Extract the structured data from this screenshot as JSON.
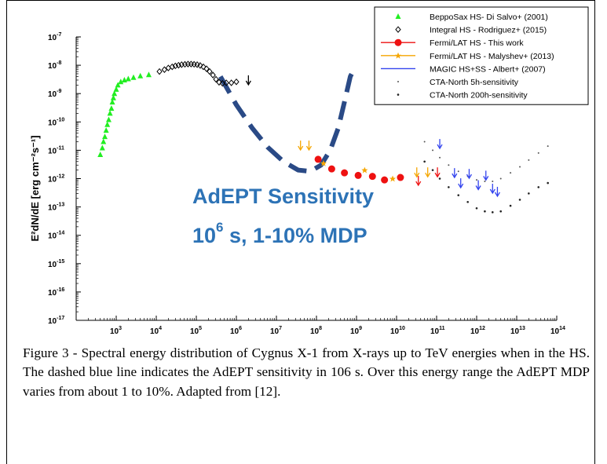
{
  "chart_data": {
    "type": "scatter",
    "xlabel": "Energy [eV]",
    "ylabel": "E²dN/dE [erg cm⁻²s⁻¹]",
    "x_scale": "log",
    "y_scale": "log",
    "xlim": [
      100,
      100000000000000.0
    ],
    "ylim": [
      1e-17,
      1e-07
    ],
    "x_tick_exponents": [
      3,
      4,
      5,
      6,
      7,
      8,
      9,
      10,
      11,
      12,
      13,
      14
    ],
    "y_tick_exponents": [
      -7,
      -8,
      -9,
      -10,
      -11,
      -12,
      -13,
      -14,
      -15,
      -16,
      -17
    ],
    "grid": false,
    "legend_position": "top-right",
    "series": [
      {
        "name": "BeppoSax  HS- Di Salvo+ (2001)",
        "marker": "triangle",
        "color": "#22ee22",
        "points": [
          [
            400,
            7e-12
          ],
          [
            450,
            1.2e-11
          ],
          [
            480,
            2e-11
          ],
          [
            520,
            3e-11
          ],
          [
            560,
            5e-11
          ],
          [
            600,
            8e-11
          ],
          [
            650,
            1.2e-10
          ],
          [
            700,
            2e-10
          ],
          [
            760,
            3e-10
          ],
          [
            800,
            5e-10
          ],
          [
            850,
            7e-10
          ],
          [
            900,
            1e-09
          ],
          [
            1000,
            1.4e-09
          ],
          [
            1100,
            2e-09
          ],
          [
            1300,
            2.6e-09
          ],
          [
            1600,
            3e-09
          ],
          [
            2000,
            3.3e-09
          ],
          [
            2700,
            3.7e-09
          ],
          [
            4000,
            4.2e-09
          ],
          [
            6500,
            4.6e-09
          ]
        ]
      },
      {
        "name": "Integral HS - Rodriguez+ (2015)",
        "marker": "diamond-open",
        "color": "#000000",
        "points": [
          [
            12000,
            6e-09
          ],
          [
            16000,
            7e-09
          ],
          [
            20000,
            8e-09
          ],
          [
            25000,
            8.8e-09
          ],
          [
            30000,
            9.5e-09
          ],
          [
            36000,
            1e-08
          ],
          [
            43000,
            1.05e-08
          ],
          [
            52000,
            1.08e-08
          ],
          [
            62000,
            1.1e-08
          ],
          [
            74000,
            1.1e-08
          ],
          [
            88000,
            1.08e-08
          ],
          [
            105000,
            1.05e-08
          ],
          [
            125000,
            9.8e-09
          ],
          [
            150000,
            8.8e-09
          ],
          [
            180000,
            7.5e-09
          ],
          [
            215000,
            6e-09
          ],
          [
            260000,
            4.5e-09
          ],
          [
            310000,
            3.2e-09
          ],
          [
            370000,
            2.5e-09
          ],
          [
            450000,
            2.3e-09
          ],
          [
            560000,
            2.4e-09
          ],
          [
            750000,
            2.4e-09
          ],
          [
            1000000,
            2.6e-09
          ]
        ]
      },
      {
        "name": "Fermi/LAT HS - This work",
        "marker": "circle",
        "color": "#ee1111",
        "points": [
          [
            110000000.0,
            4.8e-12
          ],
          [
            240000000.0,
            2.2e-12
          ],
          [
            500000000.0,
            1.6e-12
          ],
          [
            1100000000.0,
            1.3e-12
          ],
          [
            2500000000.0,
            1.2e-12
          ],
          [
            5000000000.0,
            9e-13
          ],
          [
            12500000000.0,
            1.1e-12
          ]
        ]
      },
      {
        "name": "Fermi/LAT HS - Malyshev+ (2013)",
        "marker": "star",
        "color": "#f5a600",
        "points": [
          [
            150000000.0,
            3.5e-12
          ],
          [
            1600000000.0,
            2e-12
          ],
          [
            8000000000.0,
            1e-12
          ]
        ]
      },
      {
        "name": "MAGIC HS+SS - Albert+ (2007)",
        "marker": "line",
        "color": "#3344ee",
        "points": []
      },
      {
        "name": "CTA-North 5h-sensitivity",
        "marker": "dot-small",
        "color": "#555555",
        "points": [
          [
            50000000000.0,
            2e-11
          ],
          [
            80000000000.0,
            1e-11
          ],
          [
            120000000000.0,
            5.5e-12
          ],
          [
            200000000000.0,
            3e-12
          ],
          [
            350000000000.0,
            1.8e-12
          ],
          [
            600000000000.0,
            1.2e-12
          ],
          [
            1000000000000.0,
            9e-13
          ],
          [
            1600000000000.0,
            8e-13
          ],
          [
            2500000000000.0,
            8e-13
          ],
          [
            4000000000000.0,
            1e-12
          ],
          [
            7000000000000.0,
            1.6e-12
          ],
          [
            12000000000000.0,
            2.6e-12
          ],
          [
            20000000000000.0,
            4.5e-12
          ],
          [
            35000000000000.0,
            8e-12
          ],
          [
            60000000000000.0,
            1.4e-11
          ]
        ]
      },
      {
        "name": "CTA-North 200h-sensitivity",
        "marker": "dot",
        "color": "#222222",
        "points": [
          [
            50000000000.0,
            4e-12
          ],
          [
            80000000000.0,
            2e-12
          ],
          [
            120000000000.0,
            1e-12
          ],
          [
            200000000000.0,
            5e-13
          ],
          [
            350000000000.0,
            2.6e-13
          ],
          [
            600000000000.0,
            1.5e-13
          ],
          [
            1000000000000.0,
            9e-14
          ],
          [
            1600000000000.0,
            7e-14
          ],
          [
            2500000000000.0,
            6.5e-14
          ],
          [
            4000000000000.0,
            7e-14
          ],
          [
            7000000000000.0,
            1.1e-13
          ],
          [
            12000000000000.0,
            1.8e-13
          ],
          [
            20000000000000.0,
            3e-13
          ],
          [
            35000000000000.0,
            5e-13
          ],
          [
            60000000000000.0,
            7e-13
          ]
        ]
      }
    ],
    "upper_limits": [
      {
        "color": "#000000",
        "points": [
          [
            2000000.0,
            3e-09
          ]
        ]
      },
      {
        "color": "#f5a600",
        "points": [
          [
            40000000.0,
            1.5e-11
          ],
          [
            65000000.0,
            1.5e-11
          ],
          [
            32000000000.0,
            1.7e-12
          ],
          [
            60000000000.0,
            1.7e-12
          ]
        ]
      },
      {
        "color": "#ee1111",
        "points": [
          [
            35000000000.0,
            8.5e-13
          ],
          [
            105000000000.0,
            1.7e-12
          ]
        ]
      },
      {
        "color": "#3344ee",
        "points": [
          [
            120000000000.0,
            1.7e-11
          ],
          [
            280000000000.0,
            1.6e-12
          ],
          [
            400000000000.0,
            7e-13
          ],
          [
            650000000000.0,
            1.5e-12
          ],
          [
            1100000000000.0,
            6e-13
          ],
          [
            1700000000000.0,
            1.3e-12
          ],
          [
            2500000000000.0,
            4.5e-13
          ],
          [
            3300000000000.0,
            3.5e-13
          ]
        ]
      }
    ],
    "adept_sensitivity": {
      "color": "#2a4a86",
      "points": [
        [
          400000.0,
          4e-09
        ],
        [
          1000000.0,
          4e-10
        ],
        [
          2500000.0,
          6e-11
        ],
        [
          6000000.0,
          1.3e-11
        ],
        [
          15000000.0,
          4e-12
        ],
        [
          35000000.0,
          2e-12
        ],
        [
          70000000.0,
          1.8e-12
        ],
        [
          130000000.0,
          3e-12
        ],
        [
          220000000.0,
          1e-11
        ],
        [
          350000000.0,
          6e-11
        ],
        [
          500000000.0,
          5e-10
        ],
        [
          700000000.0,
          4e-09
        ],
        [
          900000000.0,
          8e-09
        ]
      ]
    },
    "annotation_line1": "AdEPT Sensitivity",
    "annotation_line2_base": "10",
    "annotation_line2_sup": "6",
    "annotation_line2_rest": " s, 1-10% MDP"
  },
  "caption": "Figure 3 - Spectral energy distribution of Cygnus X-1 from X-rays up to TeV energies when in the HS.  The dashed blue line indicates the AdEPT sensitivity in 106 s.  Over this energy range the AdEPT MDP varies from about 1 to 10%. Adapted from [12]."
}
